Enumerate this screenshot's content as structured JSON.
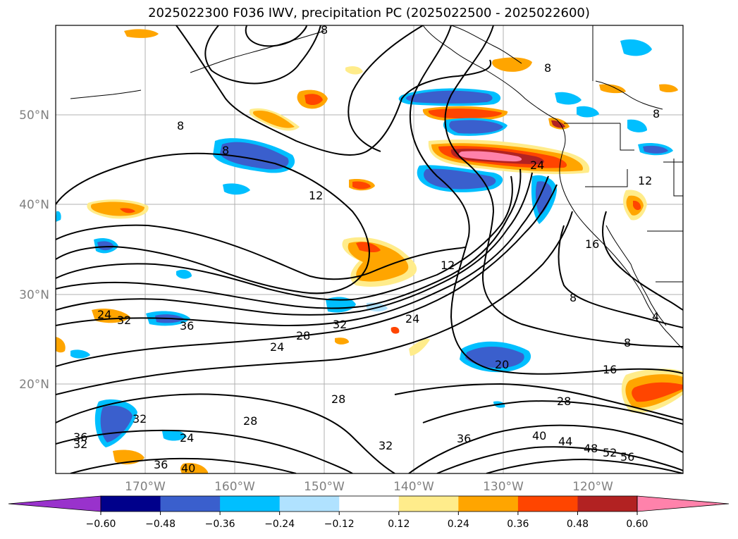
{
  "title": "2025022300 F036 IWV, precipitation PC (2025022500 - 2025022600)",
  "lat_labels": [
    "50°N",
    "40°N",
    "30°N",
    "20°N"
  ],
  "lon_labels": [
    "170°W",
    "160°W",
    "150°W",
    "140°W",
    "130°W",
    "120°W"
  ],
  "colorbar": {
    "ticks": [
      "−0.60",
      "−0.48",
      "−0.36",
      "−0.24",
      "−0.12",
      "0.12",
      "0.24",
      "0.36",
      "0.48",
      "0.60"
    ],
    "colors": [
      "#9932cc",
      "#00008b",
      "#3a5fcd",
      "#00bfff",
      "#b0e2ff",
      "#ffffff",
      "#ffec8b",
      "#ffa500",
      "#ff4500",
      "#b22222",
      "#ff82ab"
    ]
  },
  "contour_labels": [
    "8",
    "8",
    "8",
    "8",
    "8",
    "8",
    "8",
    "12",
    "12",
    "12",
    "16",
    "16",
    "24",
    "24",
    "24",
    "24",
    "24",
    "28",
    "28",
    "28",
    "28",
    "32",
    "32",
    "32",
    "32",
    "32",
    "36",
    "36",
    "36",
    "36",
    "40",
    "40",
    "44",
    "48",
    "52",
    "56",
    "20",
    "4"
  ]
}
